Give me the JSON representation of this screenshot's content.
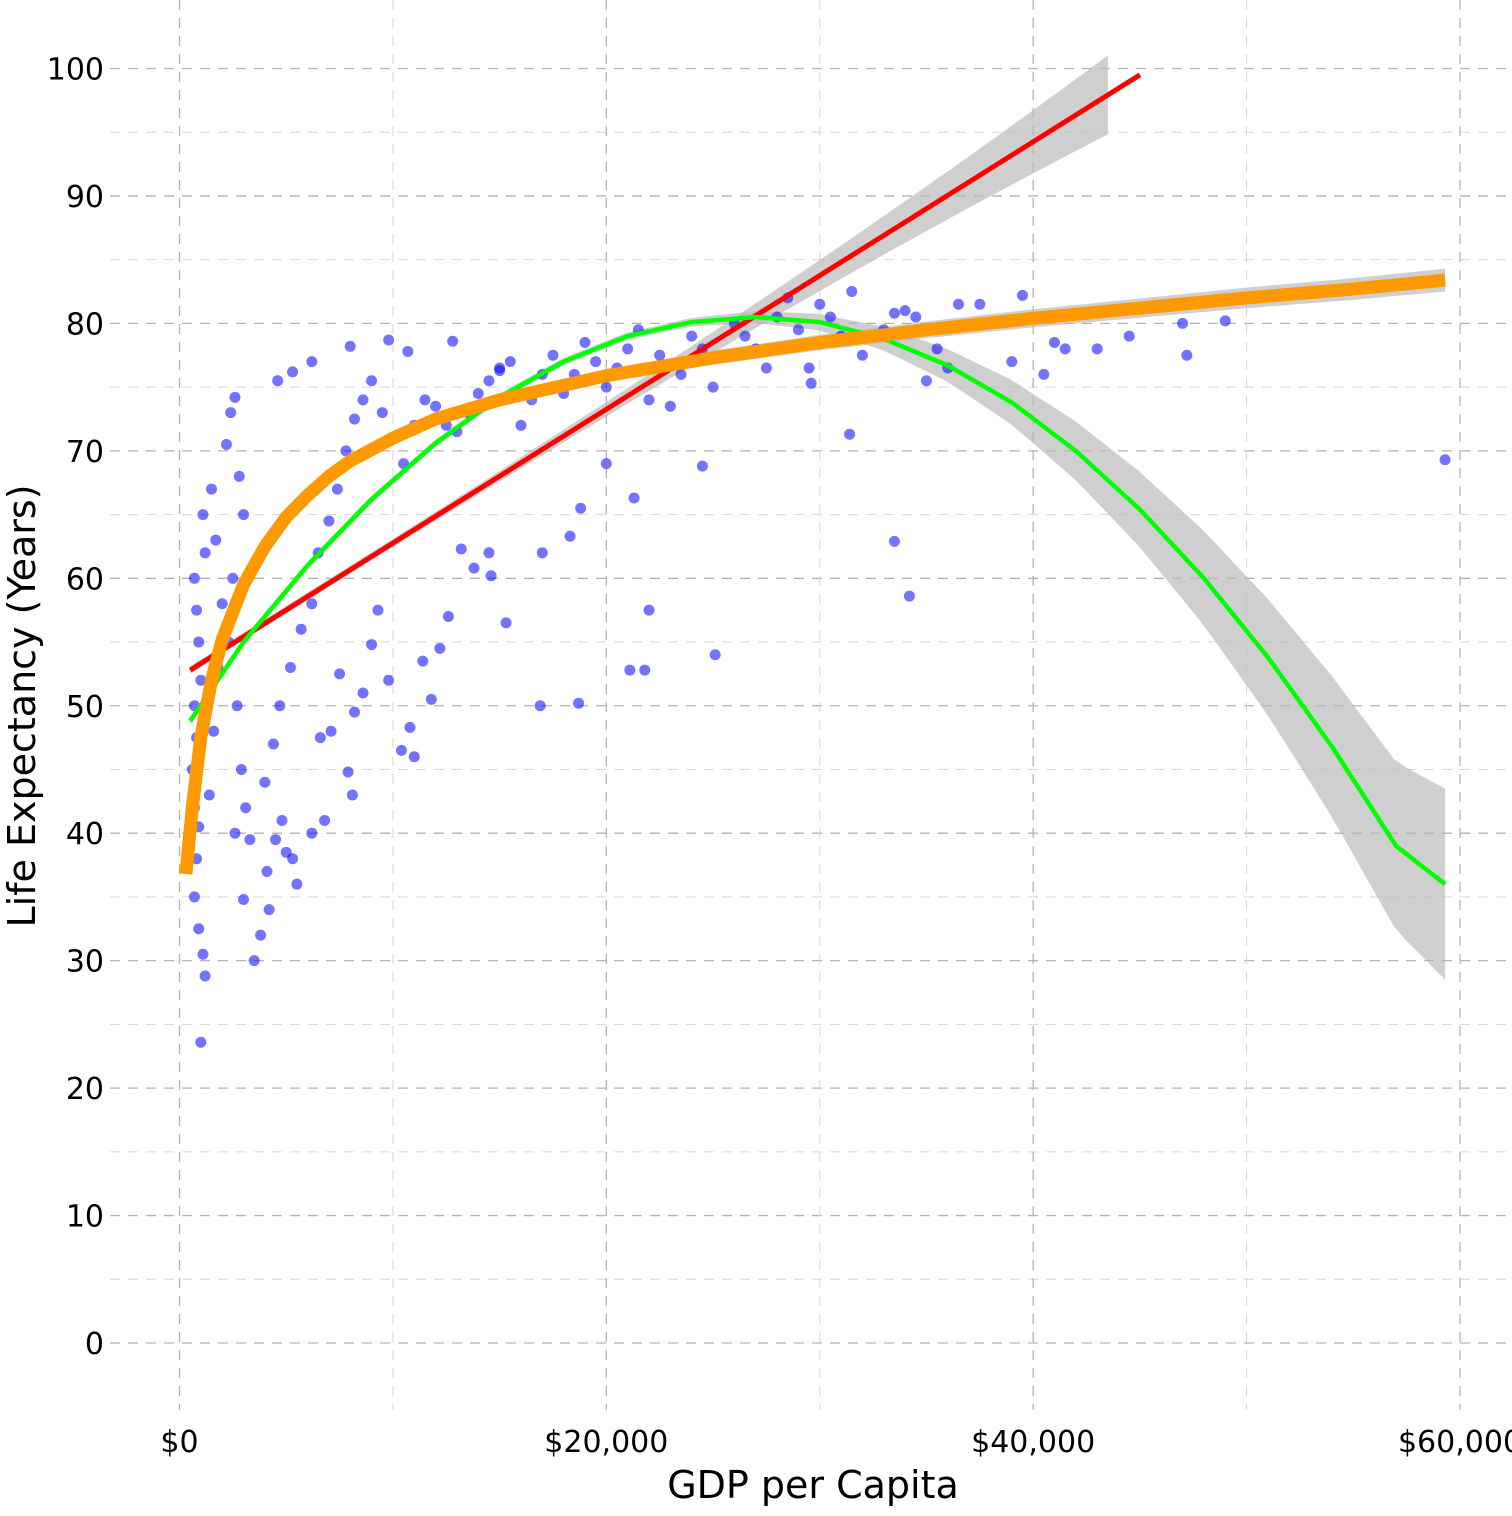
{
  "chart_data": {
    "type": "scatter",
    "title": "",
    "xlabel": "GDP per Capita",
    "ylabel": "Life Expectancy (Years)",
    "xlim": [
      -3000,
      61000
    ],
    "ylim": [
      -5,
      104
    ],
    "x_ticks": [
      0,
      20000,
      40000,
      60000
    ],
    "x_tick_labels": [
      "$0",
      "$20,000",
      "$40,000",
      "$60,000"
    ],
    "y_ticks": [
      0,
      10,
      20,
      30,
      40,
      50,
      60,
      70,
      80,
      90,
      100
    ],
    "y_tick_labels": [
      "0",
      "10",
      "20",
      "30",
      "40",
      "50",
      "60",
      "70",
      "80",
      "90",
      "100"
    ],
    "grid": true,
    "grid_style": "dashed",
    "legend": "none",
    "colors": {
      "points": "#0000ff",
      "linear": "#ff0000",
      "quadratic": "#00ff00",
      "log": "#ff9900",
      "ribbon": "#bbbbbb",
      "grid": "#b3b3b3"
    },
    "series": [
      {
        "kind": "points",
        "description": "GDP per capita vs life expectancy observations",
        "points": [
          [
            1200,
            28.8
          ],
          [
            1000,
            23.6
          ],
          [
            1100,
            30.5
          ],
          [
            900,
            32.5
          ],
          [
            700,
            35.0
          ],
          [
            800,
            38.0
          ],
          [
            900,
            40.5
          ],
          [
            700,
            42.0
          ],
          [
            600,
            45.0
          ],
          [
            800,
            47.5
          ],
          [
            700,
            50.0
          ],
          [
            1000,
            52.0
          ],
          [
            900,
            55.0
          ],
          [
            800,
            57.5
          ],
          [
            700,
            60.0
          ],
          [
            1200,
            62.0
          ],
          [
            1100,
            65.0
          ],
          [
            1500,
            67.0
          ],
          [
            1400,
            43.0
          ],
          [
            1600,
            48.0
          ],
          [
            1800,
            53.0
          ],
          [
            2000,
            58.0
          ],
          [
            1700,
            63.0
          ],
          [
            2200,
            70.5
          ],
          [
            2400,
            73.0
          ],
          [
            2600,
            74.2
          ],
          [
            2800,
            68.0
          ],
          [
            3000,
            65.0
          ],
          [
            2500,
            60.0
          ],
          [
            2300,
            55.0
          ],
          [
            2700,
            50.0
          ],
          [
            2900,
            45.0
          ],
          [
            2600,
            40.0
          ],
          [
            3100,
            42.0
          ],
          [
            3300,
            39.5
          ],
          [
            3000,
            34.8
          ],
          [
            3500,
            30.0
          ],
          [
            3800,
            32.0
          ],
          [
            4200,
            34.0
          ],
          [
            4100,
            37.0
          ],
          [
            4500,
            39.5
          ],
          [
            5000,
            38.5
          ],
          [
            5500,
            36.0
          ],
          [
            5300,
            38.0
          ],
          [
            4800,
            41.0
          ],
          [
            4000,
            44.0
          ],
          [
            4400,
            47.0
          ],
          [
            4700,
            50.0
          ],
          [
            5200,
            53.0
          ],
          [
            5700,
            56.0
          ],
          [
            6200,
            58.0
          ],
          [
            6500,
            62.0
          ],
          [
            7000,
            64.5
          ],
          [
            7400,
            67.0
          ],
          [
            7800,
            70.0
          ],
          [
            8200,
            72.5
          ],
          [
            8600,
            74.0
          ],
          [
            9000,
            75.5
          ],
          [
            9500,
            73.0
          ],
          [
            10000,
            71.0
          ],
          [
            10500,
            69.0
          ],
          [
            11000,
            72.0
          ],
          [
            11500,
            74.0
          ],
          [
            12000,
            73.5
          ],
          [
            12500,
            72.0
          ],
          [
            13000,
            71.5
          ],
          [
            13500,
            73.0
          ],
          [
            14000,
            74.5
          ],
          [
            14500,
            75.5
          ],
          [
            15000,
            76.5
          ],
          [
            15500,
            77.0
          ],
          [
            16000,
            72.0
          ],
          [
            16500,
            74.0
          ],
          [
            17000,
            76.0
          ],
          [
            17500,
            77.5
          ],
          [
            18000,
            74.5
          ],
          [
            18500,
            76.0
          ],
          [
            19000,
            78.5
          ],
          [
            19500,
            77.0
          ],
          [
            20000,
            75.0
          ],
          [
            20500,
            76.5
          ],
          [
            21000,
            78.0
          ],
          [
            21500,
            79.5
          ],
          [
            22000,
            74.0
          ],
          [
            22500,
            77.5
          ],
          [
            23000,
            73.5
          ],
          [
            23500,
            76.0
          ],
          [
            24000,
            79.0
          ],
          [
            24500,
            78.0
          ],
          [
            25000,
            75.0
          ],
          [
            25500,
            77.5
          ],
          [
            26000,
            80.0
          ],
          [
            26500,
            79.0
          ],
          [
            27000,
            78.0
          ],
          [
            27500,
            76.5
          ],
          [
            28000,
            80.5
          ],
          [
            28500,
            82.0
          ],
          [
            29000,
            79.5
          ],
          [
            29500,
            76.5
          ],
          [
            30000,
            81.5
          ],
          [
            30500,
            80.5
          ],
          [
            31000,
            79.0
          ],
          [
            31500,
            82.5
          ],
          [
            32000,
            77.5
          ],
          [
            33000,
            79.5
          ],
          [
            33500,
            80.8
          ],
          [
            34000,
            81.0
          ],
          [
            34500,
            80.5
          ],
          [
            35000,
            75.5
          ],
          [
            35500,
            78.0
          ],
          [
            36000,
            76.5
          ],
          [
            36500,
            81.5
          ],
          [
            37500,
            81.5
          ],
          [
            39000,
            77.0
          ],
          [
            39500,
            82.2
          ],
          [
            40500,
            76.0
          ],
          [
            41000,
            78.5
          ],
          [
            41500,
            78.0
          ],
          [
            43000,
            78.0
          ],
          [
            44500,
            79.0
          ],
          [
            47000,
            80.0
          ],
          [
            47200,
            77.5
          ],
          [
            49000,
            80.2
          ],
          [
            59300,
            69.3
          ],
          [
            9800,
            78.7
          ],
          [
            10700,
            77.8
          ],
          [
            8000,
            78.2
          ],
          [
            6200,
            77.0
          ],
          [
            5300,
            76.2
          ],
          [
            4600,
            75.5
          ],
          [
            12800,
            78.6
          ],
          [
            15000,
            76.3
          ],
          [
            18800,
            65.5
          ],
          [
            17000,
            62.0
          ],
          [
            18300,
            63.3
          ],
          [
            20000,
            69.0
          ],
          [
            21300,
            66.3
          ],
          [
            24500,
            68.8
          ],
          [
            25100,
            54.0
          ],
          [
            22000,
            57.5
          ],
          [
            21100,
            52.8
          ],
          [
            21800,
            52.8
          ],
          [
            18700,
            50.2
          ],
          [
            16900,
            50.0
          ],
          [
            15300,
            56.5
          ],
          [
            14600,
            60.2
          ],
          [
            14500,
            62.0
          ],
          [
            13800,
            60.8
          ],
          [
            13200,
            62.3
          ],
          [
            12600,
            57.0
          ],
          [
            12200,
            54.5
          ],
          [
            11800,
            50.5
          ],
          [
            11400,
            53.5
          ],
          [
            11000,
            46.0
          ],
          [
            10400,
            46.5
          ],
          [
            10800,
            48.3
          ],
          [
            9800,
            52.0
          ],
          [
            9300,
            57.5
          ],
          [
            9000,
            54.8
          ],
          [
            8600,
            51.0
          ],
          [
            8200,
            49.5
          ],
          [
            7900,
            44.8
          ],
          [
            8100,
            43.0
          ],
          [
            7500,
            52.5
          ],
          [
            7100,
            48.0
          ],
          [
            6600,
            47.5
          ],
          [
            6200,
            40.0
          ],
          [
            6800,
            41.0
          ],
          [
            33500,
            62.9
          ],
          [
            34200,
            58.6
          ],
          [
            31400,
            71.3
          ],
          [
            29600,
            75.3
          ]
        ]
      },
      {
        "kind": "line",
        "fit": "linear",
        "description": "Linear regression fit",
        "x": [
          500,
          45000
        ],
        "y": [
          52.8,
          99.5
        ],
        "band": {
          "x": [
            43500
          ],
          "lo": [
            96.5
          ],
          "hi": [
            102.5
          ]
        }
      },
      {
        "kind": "line",
        "fit": "quadratic",
        "description": "Quadratic regression fit",
        "x": [
          500,
          3000,
          6000,
          9000,
          12000,
          15000,
          18000,
          21000,
          24000,
          27000,
          30000,
          33000,
          36000,
          39000,
          42000,
          45000,
          48000,
          51000,
          54000,
          57000,
          59300
        ],
        "y": [
          48.8,
          55.0,
          61.0,
          66.2,
          70.6,
          74.2,
          77.0,
          79.0,
          80.1,
          80.5,
          80.1,
          78.8,
          76.7,
          73.8,
          70.0,
          65.4,
          60.0,
          53.8,
          46.8,
          39.0,
          36.0
        ]
      },
      {
        "kind": "line",
        "fit": "log",
        "description": "Logarithmic fit",
        "x": [
          300,
          600,
          1000,
          1500,
          2000,
          3000,
          4000,
          5000,
          6000,
          7000,
          8000,
          10000,
          12000,
          15000,
          20000,
          25000,
          30000,
          35000,
          40000,
          45000,
          50000,
          55000,
          59300
        ],
        "y": [
          36.8,
          42.0,
          47.5,
          52.0,
          55.2,
          59.5,
          62.5,
          64.8,
          66.5,
          68.0,
          69.2,
          71.0,
          72.5,
          74.0,
          75.9,
          77.3,
          78.5,
          79.5,
          80.4,
          81.2,
          82.0,
          82.7,
          83.4
        ]
      }
    ]
  }
}
